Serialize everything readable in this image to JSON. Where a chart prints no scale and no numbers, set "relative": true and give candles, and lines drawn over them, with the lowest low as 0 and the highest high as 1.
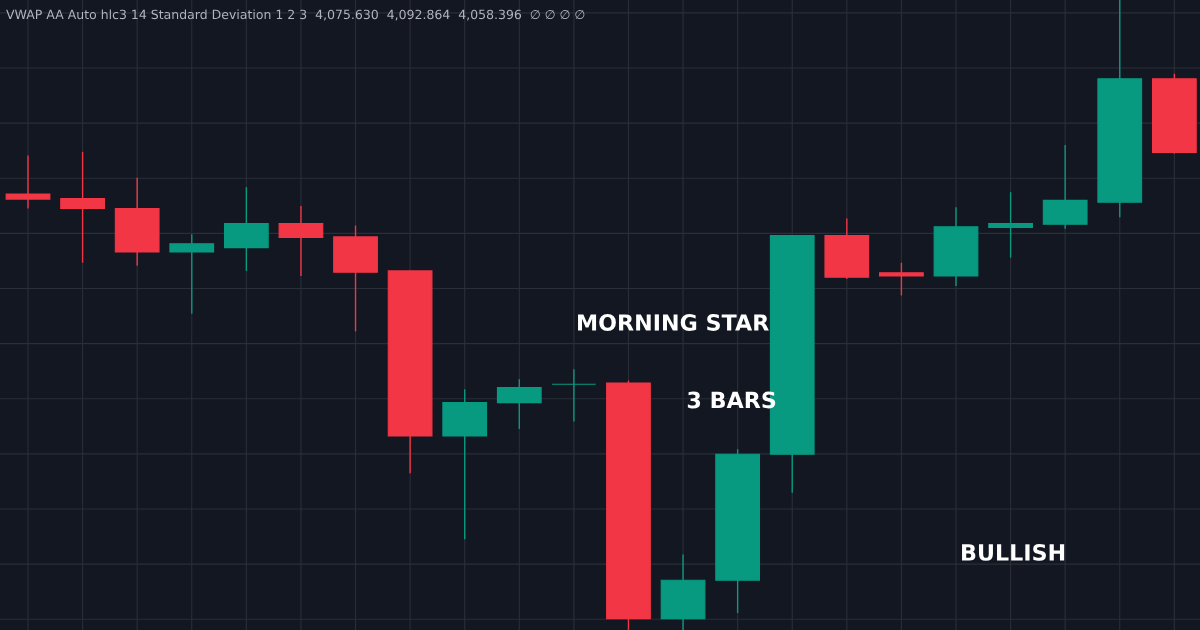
{
  "chart_data": {
    "type": "candlestick",
    "relative": true,
    "grid": true,
    "categories": [
      null,
      null,
      null,
      null,
      null,
      null,
      null,
      null,
      null,
      null,
      null,
      null,
      null,
      null,
      null,
      null,
      null,
      null,
      null,
      null,
      null,
      null
    ],
    "ohlc": [
      [
        0.692,
        0.753,
        0.669,
        0.684
      ],
      [
        0.685,
        0.759,
        0.583,
        0.669
      ],
      [
        0.669,
        0.718,
        0.578,
        0.6
      ],
      [
        0.6,
        0.628,
        0.502,
        0.613
      ],
      [
        0.607,
        0.703,
        0.57,
        0.645
      ],
      [
        0.645,
        0.673,
        0.562,
        0.623
      ],
      [
        0.624,
        0.642,
        0.474,
        0.568
      ],
      [
        0.57,
        0.57,
        0.249,
        0.308
      ],
      [
        0.308,
        0.382,
        0.144,
        0.361
      ],
      [
        0.361,
        0.398,
        0.319,
        0.385
      ],
      [
        0.39,
        0.414,
        0.331,
        0.39
      ],
      [
        0.392,
        0.396,
        0.0,
        0.018
      ],
      [
        0.018,
        0.12,
        0.0,
        0.079
      ],
      [
        0.079,
        0.287,
        0.027,
        0.279
      ],
      [
        0.279,
        0.626,
        0.218,
        0.626
      ],
      [
        0.626,
        0.653,
        0.557,
        0.56
      ],
      [
        0.567,
        0.583,
        0.531,
        0.562
      ],
      [
        0.562,
        0.671,
        0.546,
        0.64
      ],
      [
        0.639,
        0.695,
        0.591,
        0.645
      ],
      [
        0.644,
        0.77,
        0.637,
        0.682
      ],
      [
        0.679,
        1.0,
        0.655,
        0.875
      ],
      [
        0.875,
        0.883,
        0.756,
        0.758
      ]
    ],
    "colors": [
      "#f23645",
      "#f23645",
      "#f23645",
      "#089981",
      "#089981",
      "#f23645",
      "#f23645",
      "#f23645",
      "#089981",
      "#089981",
      "#089981",
      "#f23645",
      "#089981",
      "#089981",
      "#089981",
      "#f23645",
      "#f23645",
      "#089981",
      "#089981",
      "#089981",
      "#089981",
      "#f23645"
    ],
    "annotations": [
      "VWAP AA Auto hlc3 14 Standard Deviation 1 2 3  4,075.630  4,092.864  4,058.396  ∅ ∅ ∅ ∅",
      "MORNING STAR",
      "3 BARS",
      "BULLISH"
    ]
  }
}
